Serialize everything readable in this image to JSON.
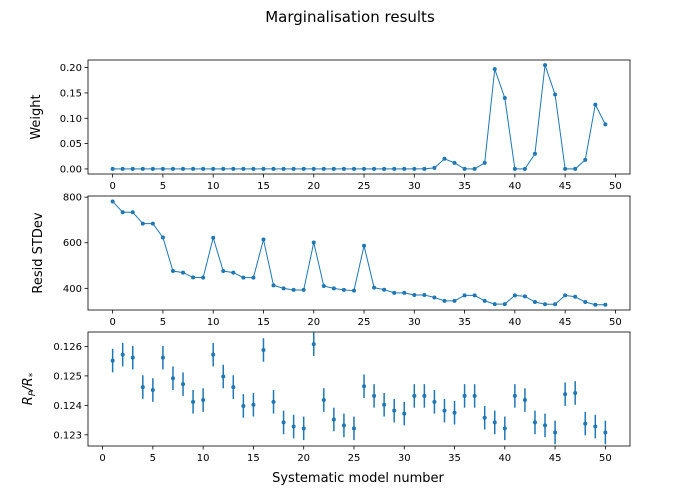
{
  "figure": {
    "title": "Marginalisation results",
    "xlabel": "Systematic model number"
  },
  "style": {
    "series_color": "#1f77b4",
    "axis_color": "#000000",
    "background": "#ffffff"
  },
  "chart_data": [
    {
      "type": "line",
      "ylabel": "Weight",
      "xlim": [
        -2.45,
        51.45
      ],
      "ylim": [
        -0.01,
        0.215
      ],
      "xticks": [
        0,
        5,
        10,
        15,
        20,
        25,
        30,
        35,
        40,
        45,
        50
      ],
      "yticks": [
        0.0,
        0.05,
        0.1,
        0.15,
        0.2
      ],
      "ytick_labels": [
        "0.00",
        "0.05",
        "0.10",
        "0.15",
        "0.20"
      ],
      "grid": false,
      "x": [
        0,
        1,
        2,
        3,
        4,
        5,
        6,
        7,
        8,
        9,
        10,
        11,
        12,
        13,
        14,
        15,
        16,
        17,
        18,
        19,
        20,
        21,
        22,
        23,
        24,
        25,
        26,
        27,
        28,
        29,
        30,
        31,
        32,
        33,
        34,
        35,
        36,
        37,
        38,
        39,
        40,
        41,
        42,
        43,
        44,
        45,
        46,
        47,
        48,
        49
      ],
      "values": [
        0,
        0,
        0,
        0,
        0,
        0,
        0,
        0,
        0,
        0,
        0,
        0,
        0,
        0,
        0,
        0,
        0,
        0,
        0,
        0,
        0,
        0,
        0,
        0,
        0,
        0,
        0,
        0,
        0,
        0,
        0,
        0,
        0.002,
        0.02,
        0.012,
        0,
        0,
        0.012,
        0.197,
        0.14,
        0,
        0,
        0.03,
        0.205,
        0.147,
        0,
        0,
        0.018,
        0.127,
        0.088
      ]
    },
    {
      "type": "line",
      "ylabel": "Resid STDev",
      "xlim": [
        -2.45,
        51.45
      ],
      "ylim": [
        305,
        805
      ],
      "xticks": [
        0,
        5,
        10,
        15,
        20,
        25,
        30,
        35,
        40,
        45,
        50
      ],
      "yticks": [
        400,
        600,
        800
      ],
      "ytick_labels": [
        "400",
        "600",
        "800"
      ],
      "grid": false,
      "x": [
        0,
        1,
        2,
        3,
        4,
        5,
        6,
        7,
        8,
        9,
        10,
        11,
        12,
        13,
        14,
        15,
        16,
        17,
        18,
        19,
        20,
        21,
        22,
        23,
        24,
        25,
        26,
        27,
        28,
        29,
        30,
        31,
        32,
        33,
        34,
        35,
        36,
        37,
        38,
        39,
        40,
        41,
        42,
        43,
        44,
        45,
        46,
        47,
        48,
        49
      ],
      "values": [
        781,
        734,
        734,
        684,
        684,
        623,
        476,
        469,
        448,
        447,
        622,
        476,
        469,
        447,
        447,
        614,
        413,
        400,
        393,
        393,
        601,
        410,
        400,
        393,
        390,
        587,
        403,
        394,
        380,
        380,
        371,
        371,
        360,
        345,
        345,
        369,
        369,
        345,
        331,
        331,
        369,
        365,
        340,
        330,
        330,
        369,
        363,
        340,
        328,
        328
      ]
    },
    {
      "type": "scatter",
      "ylabel": "R_p/R_*",
      "ylabel_main": "R",
      "ylabel_sub1": "P",
      "ylabel_mid": "/R",
      "ylabel_sub2": "*",
      "xlim": [
        -1.45,
        52.45
      ],
      "ylim": [
        0.12262,
        0.12649
      ],
      "xticks": [
        0,
        5,
        10,
        15,
        20,
        25,
        30,
        35,
        40,
        45,
        50
      ],
      "yticks": [
        0.123,
        0.124,
        0.125,
        0.126
      ],
      "ytick_labels": [
        "0.123",
        "0.124",
        "0.125",
        "0.126"
      ],
      "grid": false,
      "x": [
        1,
        2,
        3,
        4,
        5,
        6,
        7,
        8,
        9,
        10,
        11,
        12,
        13,
        14,
        15,
        16,
        17,
        18,
        19,
        20,
        21,
        22,
        23,
        24,
        25,
        26,
        27,
        28,
        29,
        30,
        31,
        32,
        33,
        34,
        35,
        36,
        37,
        38,
        39,
        40,
        41,
        42,
        43,
        44,
        45,
        46,
        47,
        48,
        49,
        50
      ],
      "values": [
        0.12552,
        0.12572,
        0.12562,
        0.12462,
        0.12452,
        0.12562,
        0.12492,
        0.12472,
        0.12412,
        0.12418,
        0.12572,
        0.12498,
        0.12462,
        0.12398,
        0.12402,
        0.12588,
        0.12412,
        0.12342,
        0.12328,
        0.12322,
        0.12608,
        0.12418,
        0.12352,
        0.12332,
        0.12322,
        0.12465,
        0.12432,
        0.12402,
        0.12382,
        0.12372,
        0.12432,
        0.12432,
        0.12412,
        0.12382,
        0.12375,
        0.12432,
        0.12432,
        0.12358,
        0.12342,
        0.12322,
        0.12432,
        0.12418,
        0.12342,
        0.12332,
        0.12308,
        0.12438,
        0.12442,
        0.12338,
        0.12328,
        0.12308
      ],
      "errors": [
        0.0004,
        0.0004,
        0.0004,
        0.0004,
        0.0004,
        0.0004,
        0.0004,
        0.0004,
        0.0004,
        0.0004,
        0.0004,
        0.0004,
        0.0004,
        0.0004,
        0.0004,
        0.0004,
        0.0004,
        0.0004,
        0.0004,
        0.0004,
        0.0004,
        0.0004,
        0.0004,
        0.0004,
        0.0004,
        0.0004,
        0.0004,
        0.0004,
        0.0004,
        0.0004,
        0.0004,
        0.0004,
        0.0004,
        0.0004,
        0.0004,
        0.0004,
        0.0004,
        0.0004,
        0.0004,
        0.0004,
        0.0004,
        0.0004,
        0.0004,
        0.0004,
        0.0004,
        0.0004,
        0.0004,
        0.0004,
        0.0004,
        0.0004
      ]
    }
  ]
}
